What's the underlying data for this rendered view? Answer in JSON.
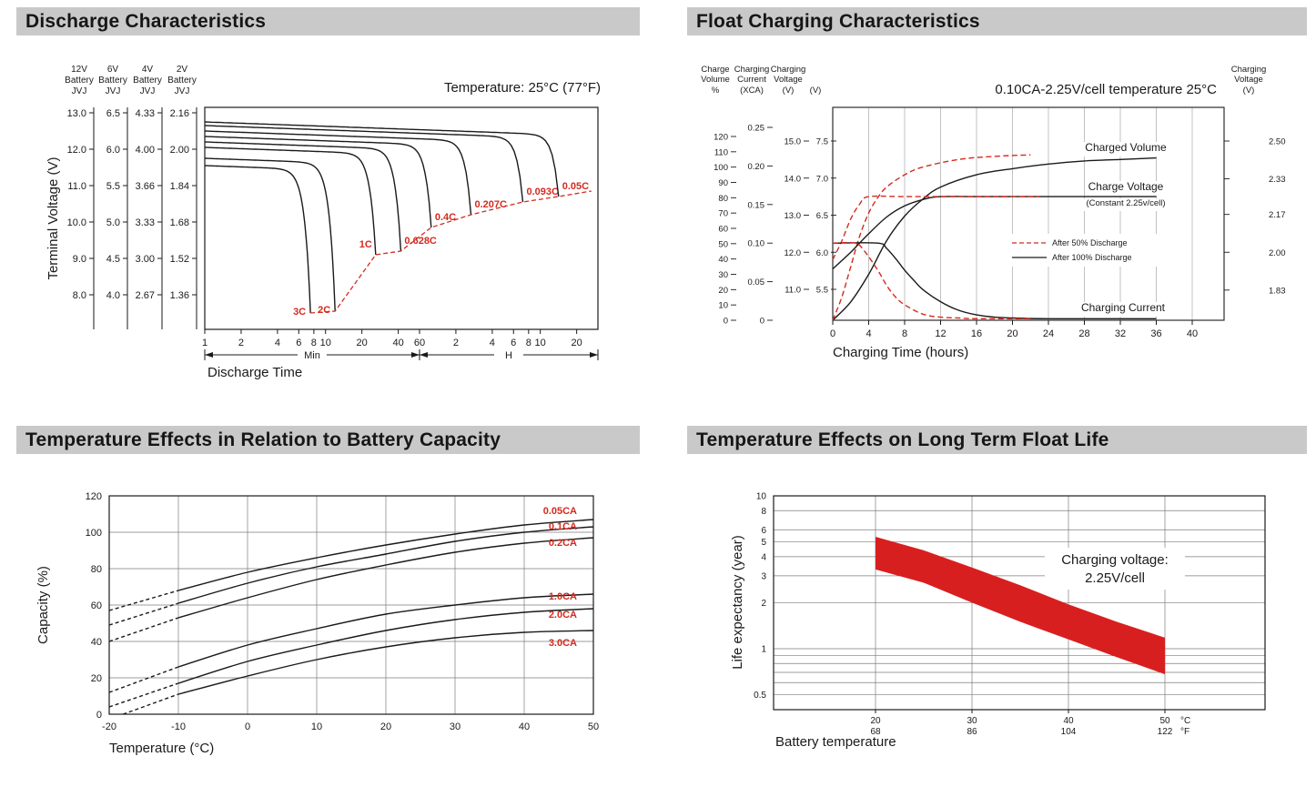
{
  "colors": {
    "header_bg": "#c9c9c9",
    "header_text": "#161616",
    "ink": "#1a1a1a",
    "grid": "#7d7d7d",
    "red": "#d42a1e",
    "band_red": "#d81f1f"
  },
  "panels": [
    {
      "title": "Discharge Characteristics"
    },
    {
      "title": "Float Charging Characteristics"
    },
    {
      "title": "Temperature Effects in Relation to Battery Capacity"
    },
    {
      "title": "Temperature Effects on Long Term Float Life"
    }
  ],
  "chart_data": [
    {
      "id": "discharge",
      "type": "line",
      "title": "Discharge Characteristics",
      "note": "Temperature: 25°C (77°F)",
      "xlabel": "Discharge Time",
      "ylabel": "Terminal Voltage (V)",
      "x_scale": "log",
      "x_unit_groups": [
        {
          "unit": "Min",
          "ticks": [
            1,
            2,
            4,
            6,
            8,
            10,
            20,
            40,
            60
          ]
        },
        {
          "unit": "H",
          "ticks": [
            2,
            4,
            6,
            8,
            10,
            20
          ]
        }
      ],
      "y_axes": [
        {
          "label": [
            "12V",
            "Battery",
            "JVJ"
          ],
          "ticks": [
            "13.0",
            "12.0",
            "11.0",
            "10.0",
            "9.0",
            "8.0"
          ]
        },
        {
          "label": [
            "6V",
            "Battery",
            "JVJ"
          ],
          "ticks": [
            "6.5",
            "6.0",
            "5.5",
            "5.0",
            "4.5",
            "4.0"
          ]
        },
        {
          "label": [
            "4V",
            "Battery",
            "JVJ"
          ],
          "ticks": [
            "4.33",
            "4.00",
            "3.66",
            "3.33",
            "3.00",
            "2.67"
          ]
        },
        {
          "label": [
            "2V",
            "Battery",
            "JVJ"
          ],
          "ticks": [
            "2.16",
            "2.00",
            "1.84",
            "1.68",
            "1.52",
            "1.36"
          ]
        }
      ],
      "curves": [
        {
          "label": "3C",
          "end_min": 7.5,
          "v_start": 11.55,
          "v_end": 7.5
        },
        {
          "label": "2C",
          "end_min": 12,
          "v_start": 11.75,
          "v_end": 7.55
        },
        {
          "label": "1C",
          "end_min": 26,
          "v_start": 12.05,
          "v_end": 9.1
        },
        {
          "label": "0.628C",
          "end_min": 42,
          "v_start": 12.2,
          "v_end": 9.2
        },
        {
          "label": "0.4C",
          "end_min": 75,
          "v_start": 12.35,
          "v_end": 9.85
        },
        {
          "label": "0.207C",
          "end_min": 160,
          "v_start": 12.5,
          "v_end": 10.2
        },
        {
          "label": "0.093C",
          "end_min": 430,
          "v_start": 12.65,
          "v_end": 10.55
        },
        {
          "label": "0.05C",
          "end_min": 850,
          "v_start": 12.75,
          "v_end": 10.7
        }
      ]
    },
    {
      "id": "float_charging",
      "type": "line",
      "title": "Float Charging Characteristics",
      "note": "0.10CA-2.25V/cell  temperature 25°C",
      "xlabel": "Charging Time (hours)",
      "x_ticks": [
        0,
        4,
        8,
        12,
        16,
        20,
        24,
        28,
        32,
        36,
        40
      ],
      "left_axes": [
        {
          "label": [
            "Charge",
            "Volume"
          ],
          "unit": "%",
          "ticks": [
            120,
            110,
            100,
            90,
            80,
            70,
            60,
            50,
            40,
            30,
            20,
            10,
            0
          ]
        },
        {
          "label": [
            "Charging",
            "Current"
          ],
          "unit": "(XCA)",
          "ticks": [
            "0.25",
            "0.20",
            "0.15",
            "0.10",
            "0.05",
            "0"
          ]
        },
        {
          "label": [
            "Charging",
            "Voltage"
          ],
          "unit": "(V)",
          "ticks": [
            "15.0",
            "14.0",
            "13.0",
            "12.0",
            "11.0"
          ]
        },
        {
          "label": [],
          "unit": "(V)",
          "ticks": [
            "7.5",
            "7.0",
            "6.5",
            "6.0",
            "5.5"
          ]
        }
      ],
      "right_axis": {
        "label": [
          "Charging",
          "Voltage"
        ],
        "unit": "(V)",
        "ticks": [
          "2.50",
          "2.33",
          "2.17",
          "2.00",
          "1.83"
        ]
      },
      "legend": [
        {
          "label": "After  50% Discharge",
          "style": "dashed"
        },
        {
          "label": "After 100% Discharge",
          "style": "solid"
        }
      ],
      "annotations": {
        "charged_volume": "Charged Volume",
        "charge_voltage": "Charge Voltage",
        "charge_voltage_sub": "(Constant 2.25v/cell)",
        "charging_current": "Charging Current"
      },
      "series": [
        {
          "name": "charged-volume-after-100",
          "axis": "volume",
          "style": "solid",
          "points": [
            [
              0,
              0
            ],
            [
              2,
              12
            ],
            [
              4,
              30
            ],
            [
              6,
              52
            ],
            [
              8,
              68
            ],
            [
              10,
              79
            ],
            [
              12,
              87
            ],
            [
              16,
              95
            ],
            [
              20,
              99
            ],
            [
              24,
              102
            ],
            [
              28,
              104
            ],
            [
              32,
              105
            ],
            [
              36,
              106
            ]
          ]
        },
        {
          "name": "charged-volume-after-50",
          "axis": "volume",
          "style": "dashed",
          "points": [
            [
              0,
              0
            ],
            [
              1,
              15
            ],
            [
              2,
              35
            ],
            [
              3,
              55
            ],
            [
              4,
              70
            ],
            [
              5,
              80
            ],
            [
              6,
              87
            ],
            [
              8,
              95
            ],
            [
              10,
              100
            ],
            [
              14,
              105
            ],
            [
              18,
              107
            ],
            [
              22,
              108
            ]
          ]
        },
        {
          "name": "charge-voltage-after-100",
          "axis": "voltage",
          "style": "solid",
          "points": [
            [
              0,
              11.55
            ],
            [
              2,
              12.0
            ],
            [
              4,
              12.5
            ],
            [
              6,
              12.95
            ],
            [
              8,
              13.25
            ],
            [
              10,
              13.42
            ],
            [
              12,
              13.5
            ],
            [
              16,
              13.5
            ],
            [
              24,
              13.5
            ],
            [
              36,
              13.5
            ]
          ]
        },
        {
          "name": "charge-voltage-after-50",
          "axis": "voltage",
          "style": "dashed",
          "points": [
            [
              0,
              11.8
            ],
            [
              1,
              12.3
            ],
            [
              2,
              12.9
            ],
            [
              3,
              13.3
            ],
            [
              4,
              13.5
            ],
            [
              8,
              13.5
            ],
            [
              16,
              13.5
            ],
            [
              23,
              13.5
            ]
          ]
        },
        {
          "name": "charging-current-after-100",
          "axis": "current",
          "style": "solid",
          "points": [
            [
              0,
              0.1
            ],
            [
              5,
              0.1
            ],
            [
              6,
              0.093
            ],
            [
              7,
              0.08
            ],
            [
              8,
              0.065
            ],
            [
              9,
              0.052
            ],
            [
              10,
              0.04
            ],
            [
              12,
              0.024
            ],
            [
              14,
              0.013
            ],
            [
              16,
              0.007
            ],
            [
              18,
              0.004
            ],
            [
              20,
              0.003
            ],
            [
              24,
              0.002
            ],
            [
              36,
              0.002
            ]
          ]
        },
        {
          "name": "charging-current-after-50",
          "axis": "current",
          "style": "dashed",
          "points": [
            [
              0,
              0.1
            ],
            [
              2.5,
              0.1
            ],
            [
              3.5,
              0.09
            ],
            [
              5,
              0.065
            ],
            [
              6,
              0.045
            ],
            [
              7,
              0.03
            ],
            [
              8,
              0.02
            ],
            [
              10,
              0.008
            ],
            [
              12,
              0.004
            ],
            [
              14,
              0.003
            ],
            [
              16,
              0.002
            ],
            [
              22,
              0.002
            ]
          ]
        }
      ]
    },
    {
      "id": "temperature_capacity",
      "type": "line",
      "title": "Temperature Effects in Relation to Battery Capacity",
      "xlabel": "Temperature (°C)",
      "ylabel": "Capacity (%)",
      "x_ticks": [
        -20,
        -10,
        0,
        10,
        20,
        30,
        40,
        50
      ],
      "y_ticks": [
        0,
        20,
        40,
        60,
        80,
        100,
        120
      ],
      "label_color": "#d42a1e",
      "series": [
        {
          "name": "0.05CA",
          "points": [
            [
              -20,
              57
            ],
            [
              -10,
              68
            ],
            [
              0,
              78
            ],
            [
              10,
              86
            ],
            [
              20,
              93
            ],
            [
              30,
              99
            ],
            [
              40,
              104
            ],
            [
              50,
              107
            ]
          ]
        },
        {
          "name": "0.1CA",
          "points": [
            [
              -20,
              49
            ],
            [
              -10,
              61
            ],
            [
              0,
              72
            ],
            [
              10,
              81
            ],
            [
              20,
              88
            ],
            [
              30,
              95
            ],
            [
              40,
              100
            ],
            [
              50,
              103
            ]
          ]
        },
        {
          "name": "0.2CA",
          "points": [
            [
              -20,
              40
            ],
            [
              -10,
              53
            ],
            [
              0,
              64
            ],
            [
              10,
              74
            ],
            [
              20,
              82
            ],
            [
              30,
              89
            ],
            [
              40,
              94
            ],
            [
              50,
              97
            ]
          ]
        },
        {
          "name": "1.0CA",
          "points": [
            [
              -20,
              12
            ],
            [
              -10,
              26
            ],
            [
              0,
              38
            ],
            [
              10,
              47
            ],
            [
              20,
              55
            ],
            [
              30,
              60
            ],
            [
              40,
              64
            ],
            [
              50,
              66
            ]
          ]
        },
        {
          "name": "2.0CA",
          "points": [
            [
              -20,
              4
            ],
            [
              -10,
              17
            ],
            [
              0,
              29
            ],
            [
              10,
              38
            ],
            [
              20,
              46
            ],
            [
              30,
              52
            ],
            [
              40,
              56
            ],
            [
              50,
              58
            ]
          ]
        },
        {
          "name": "3.0CA",
          "points": [
            [
              -18,
              0
            ],
            [
              -10,
              11
            ],
            [
              0,
              21
            ],
            [
              10,
              30
            ],
            [
              20,
              37
            ],
            [
              30,
              42
            ],
            [
              40,
              45
            ],
            [
              50,
              46
            ]
          ]
        }
      ]
    },
    {
      "id": "float_life",
      "type": "band",
      "title": "Temperature Effects on Long Term Float Life",
      "xlabel": "Battery temperature",
      "ylabel": "Life expectancy (year)",
      "x_ticks": [
        {
          "c": "20",
          "f": "68"
        },
        {
          "c": "30",
          "f": "86"
        },
        {
          "c": "40",
          "f": "104"
        },
        {
          "c": "50",
          "f": "122"
        }
      ],
      "x_units": {
        "c": "°C",
        "f": "°F"
      },
      "y_ticks": [
        "10",
        "8",
        "6",
        "5",
        "4",
        "3",
        "2",
        "1",
        "0.5"
      ],
      "y_minor": [
        0.9,
        0.8,
        0.7,
        0.6
      ],
      "annotation": [
        "Charging voltage:",
        "2.25V/cell"
      ],
      "band": {
        "upper": [
          [
            20,
            5.4
          ],
          [
            25,
            4.4
          ],
          [
            30,
            3.4
          ],
          [
            35,
            2.6
          ],
          [
            40,
            1.95
          ],
          [
            45,
            1.5
          ],
          [
            50,
            1.18
          ]
        ],
        "lower": [
          [
            20,
            3.3
          ],
          [
            25,
            2.7
          ],
          [
            30,
            2.0
          ],
          [
            35,
            1.5
          ],
          [
            40,
            1.15
          ],
          [
            45,
            0.88
          ],
          [
            50,
            0.68
          ]
        ]
      }
    }
  ]
}
